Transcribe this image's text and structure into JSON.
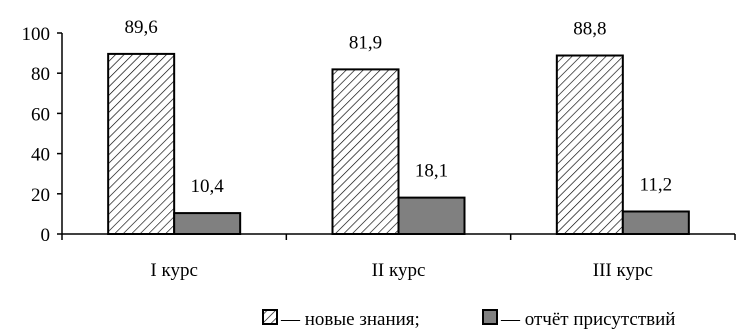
{
  "chart_data": {
    "type": "bar",
    "categories": [
      "I курс",
      "II курс",
      "III курс"
    ],
    "series": [
      {
        "name": "новые знания",
        "values": [
          89.6,
          81.9,
          88.8
        ],
        "labels": [
          "89,6",
          "81,9",
          "88,8"
        ],
        "fill": "hatched",
        "color": "#ffffff"
      },
      {
        "name": "отчёт присутствий",
        "values": [
          10.4,
          18.1,
          11.2
        ],
        "labels": [
          "10,4",
          "18,1",
          "11,2"
        ],
        "fill": "solid",
        "color": "#808080"
      }
    ],
    "ylim": [
      0,
      100
    ],
    "yticks": [
      "0",
      "20",
      "40",
      "60",
      "80",
      "100"
    ],
    "grid": false,
    "legend": {
      "position": "bottom",
      "separator": "— ",
      "items": [
        "новые знания;",
        "отчёт присутствий"
      ]
    }
  }
}
